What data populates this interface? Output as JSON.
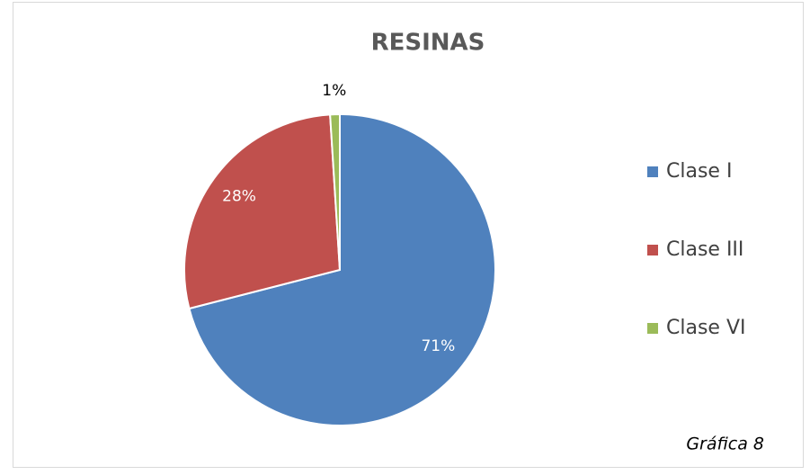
{
  "chart_data": {
    "type": "pie",
    "title": "RESINAS",
    "categories": [
      "Clase I",
      "Clase III",
      "Clase VI"
    ],
    "values": [
      71,
      28,
      1
    ],
    "value_labels": [
      "71%",
      "28%",
      "1%"
    ],
    "colors": [
      "#4f81bd",
      "#c0504d",
      "#9bbb59"
    ],
    "legend": "right",
    "annotation": "Gráfica 8"
  }
}
